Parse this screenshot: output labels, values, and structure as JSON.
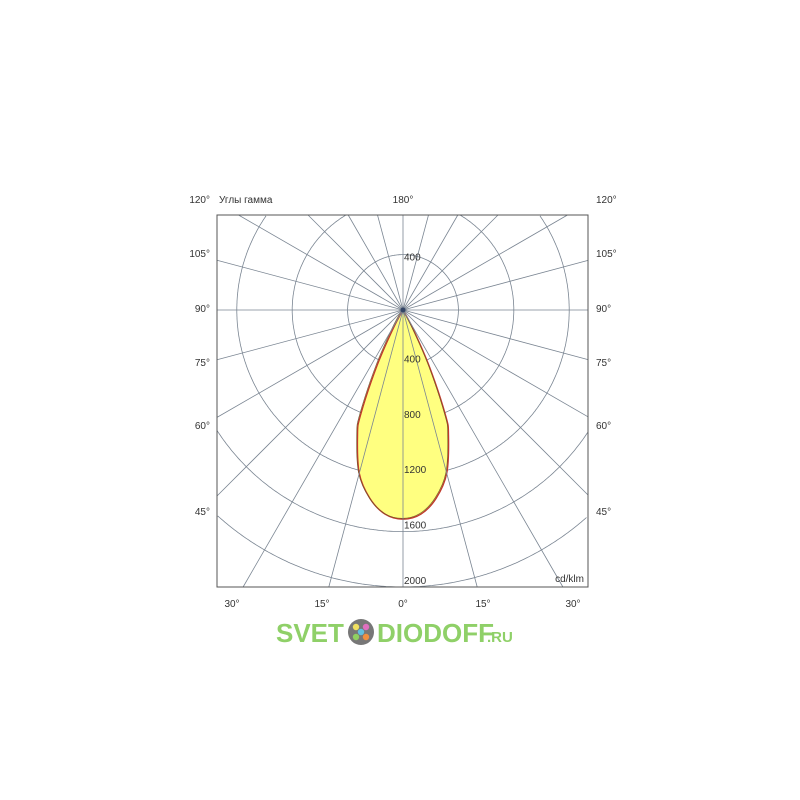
{
  "chart_data": {
    "type": "polar",
    "title": "",
    "corner_label": "Углы гамма",
    "unit_label": "cd/klm",
    "radial_ticks": [
      400,
      800,
      1200,
      1600,
      2000
    ],
    "radial_range": [
      0,
      2000
    ],
    "grid": true,
    "angle_step_deg": 15,
    "angle_labels": {
      "top": "180°",
      "left": [
        "120°",
        "105°",
        "90°",
        "75°",
        "60°",
        "45°"
      ],
      "right": [
        "120°",
        "105°",
        "90°",
        "75°",
        "60°",
        "45°"
      ],
      "bottom": [
        "30°",
        "15°",
        "0°",
        "15°",
        "30°"
      ]
    },
    "series": [
      {
        "angles_deg": [
          0,
          5,
          10,
          15,
          20,
          22,
          25,
          28,
          30
        ],
        "values": [
          1510,
          1480,
          1380,
          1220,
          960,
          820,
          450,
          150,
          0
        ],
        "fill": "#ffff80",
        "stroke": "#c0392b"
      }
    ]
  },
  "watermark": {
    "text_left": "SVET",
    "text_right": "DIODOFF",
    "suffix": ".RU"
  },
  "colors": {
    "grid": "#7a8592",
    "frame": "#555555",
    "curve_fill": "#ffff80",
    "curve_stroke": "#c0392b",
    "watermark": "#8fd068"
  }
}
